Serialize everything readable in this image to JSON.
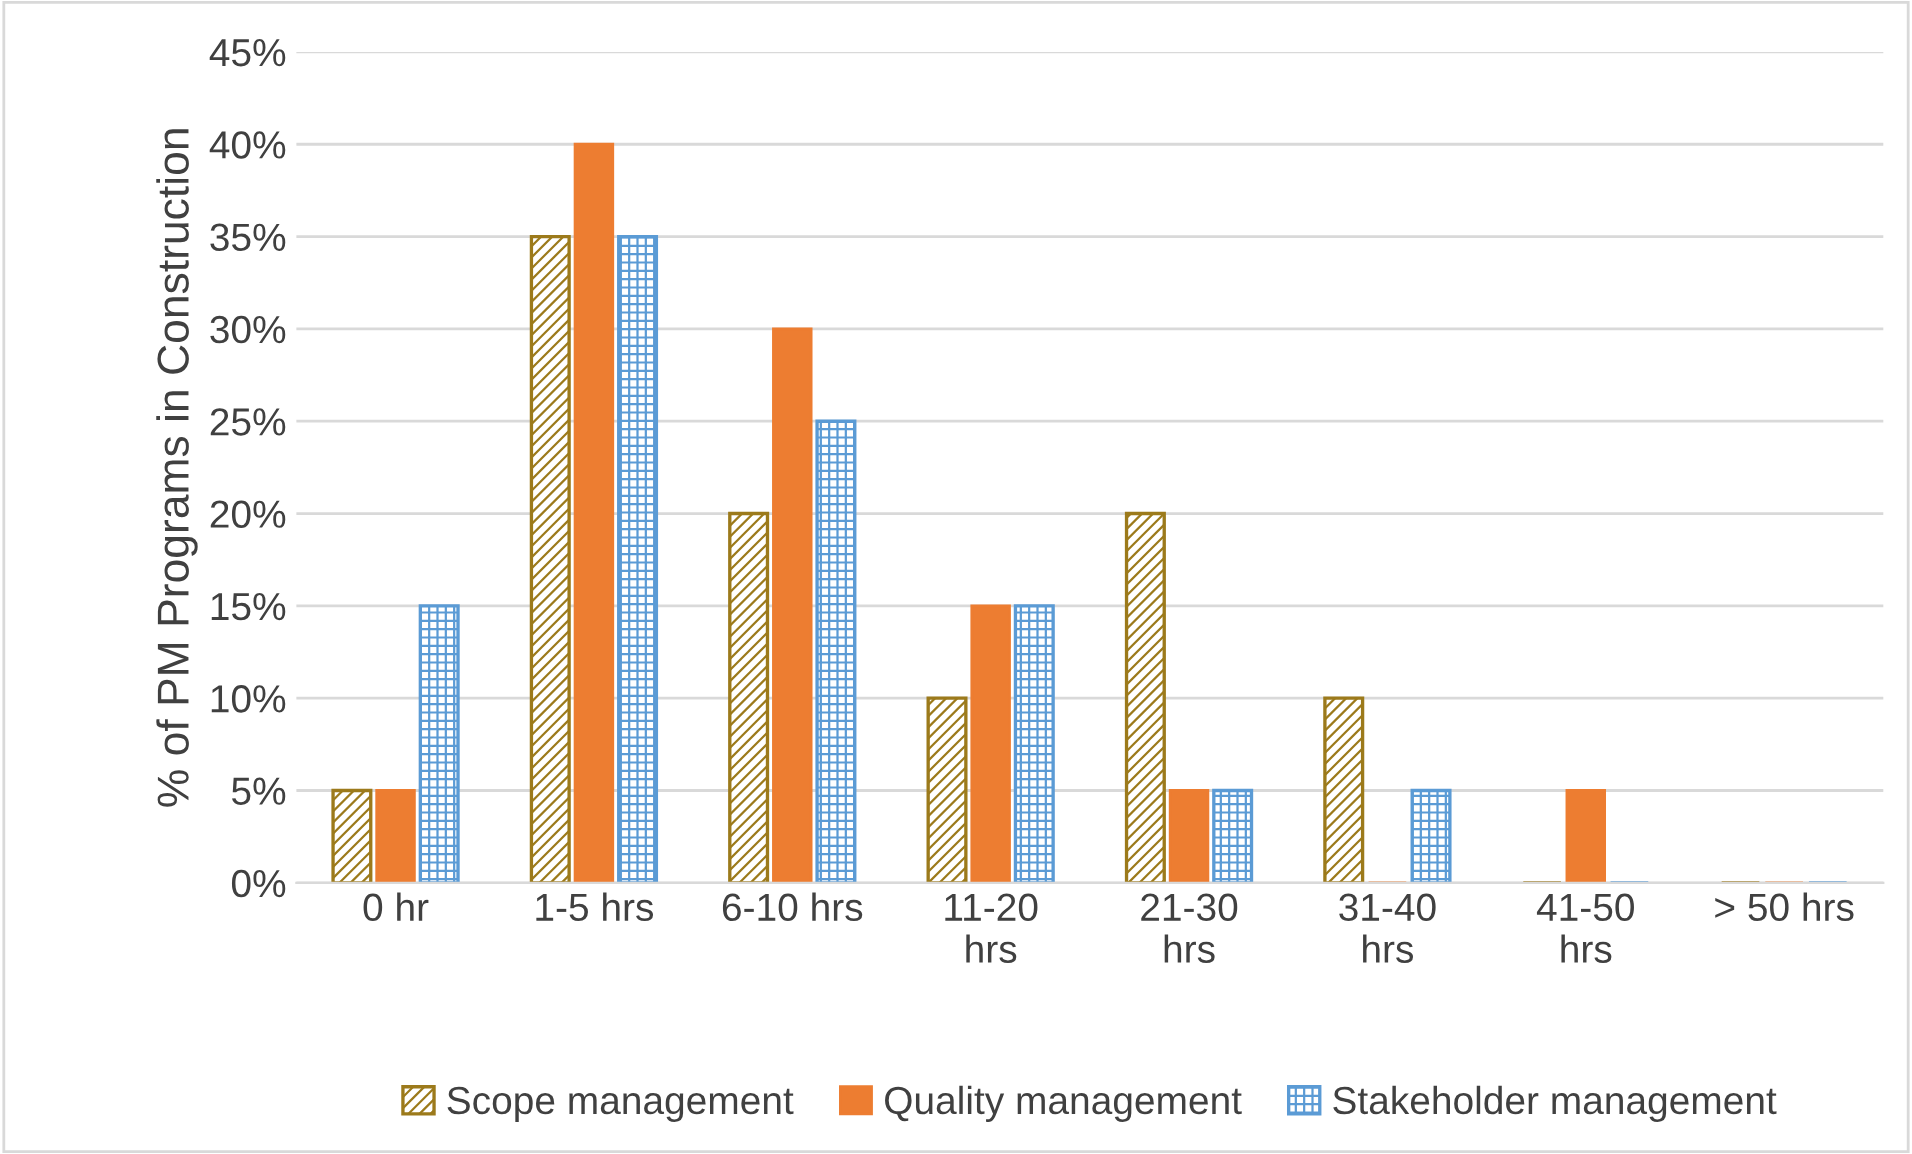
{
  "chart_data": {
    "type": "bar",
    "ylabel": "% of PM Programs in Construction",
    "categories": [
      "0 hr",
      "1-5 hrs",
      "6-10 hrs",
      "11-20\nhrs",
      "21-30\nhrs",
      "31-40\nhrs",
      "41-50\nhrs",
      "> 50 hrs"
    ],
    "series": [
      {
        "name": "Scope management",
        "color": "#9c7a1b",
        "values": [
          5,
          35,
          20,
          10,
          20,
          10,
          0,
          0
        ]
      },
      {
        "name": "Quality management",
        "color": "#ed7d31",
        "values": [
          5,
          40,
          30,
          15,
          5,
          0,
          5,
          0
        ]
      },
      {
        "name": "Stakeholder management",
        "color": "#5b9bd5",
        "values": [
          15,
          35,
          25,
          15,
          5,
          5,
          0,
          0
        ]
      }
    ],
    "ylim": [
      0,
      45
    ],
    "yticks": [
      {
        "value": 0,
        "label": "0%"
      },
      {
        "value": 5,
        "label": "5%"
      },
      {
        "value": 10,
        "label": "10%"
      },
      {
        "value": 15,
        "label": "15%"
      },
      {
        "value": 20,
        "label": "20%"
      },
      {
        "value": 25,
        "label": "25%"
      },
      {
        "value": 30,
        "label": "30%"
      },
      {
        "value": 35,
        "label": "35%"
      },
      {
        "value": 40,
        "label": "40%"
      },
      {
        "value": 45,
        "label": "45%"
      }
    ],
    "grid": "y",
    "legend": "bottom"
  }
}
